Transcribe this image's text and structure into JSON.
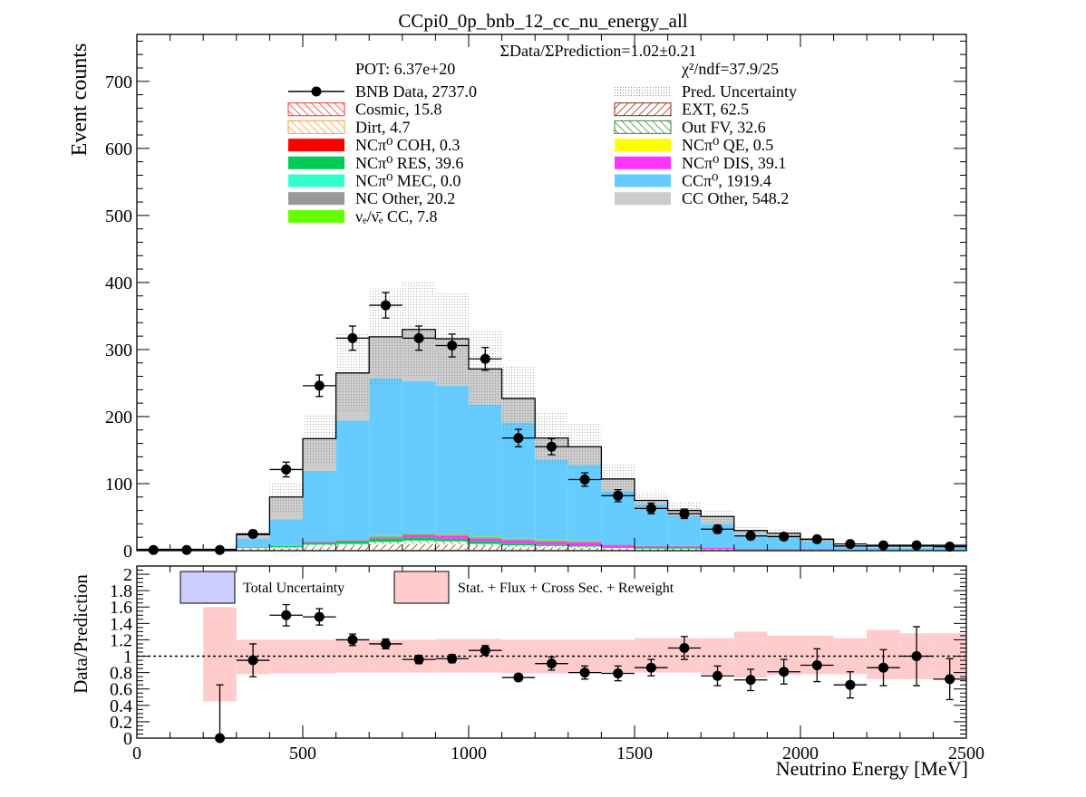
{
  "chart_data": {
    "type": "bar",
    "title": "CCpi0_0p_bnb_12_cc_nu_energy_all",
    "ylabel": "Event counts",
    "xlabel": "Neutrino Energy [MeV]",
    "ratio_ylabel": "Data/Prediction",
    "stat_line": "ΣData/ΣPrediction=1.02±0.21",
    "pot_line": "POT: 6.37e+20",
    "chi2_line": "χ²/ndf=37.9/25",
    "x_edges": [
      0,
      100,
      200,
      300,
      400,
      500,
      600,
      700,
      800,
      900,
      1000,
      1100,
      1200,
      1300,
      1400,
      1500,
      1600,
      1700,
      1800,
      1900,
      2000,
      2100,
      2200,
      2300,
      2400,
      2500
    ],
    "xlim": [
      0,
      2500
    ],
    "ylim": [
      0,
      770
    ],
    "ratio_ylim": [
      0,
      2.1
    ],
    "x_ticks": [
      0,
      500,
      1000,
      1500,
      2000,
      2500
    ],
    "y_ticks": [
      0,
      100,
      200,
      300,
      400,
      500,
      600,
      700
    ],
    "ratio_ticks": [
      0,
      0.2,
      0.4,
      0.6,
      0.8,
      1,
      1.2,
      1.4,
      1.6,
      1.8,
      2
    ],
    "legend": [
      {
        "label": "BNB Data, 2737.0",
        "style": "marker",
        "color": "#000000"
      },
      {
        "label": "Pred. Uncertainty",
        "style": "dots",
        "color": "#bbbbbb"
      },
      {
        "label": "Cosmic, 15.8",
        "style": "hatch",
        "color": "#ff3333"
      },
      {
        "label": "EXT, 62.5",
        "style": "hatch",
        "color": "#8b2a12"
      },
      {
        "label": "Dirt, 4.7",
        "style": "hatch",
        "color": "#ff9933"
      },
      {
        "label": "Out FV, 32.6",
        "style": "hatch",
        "color": "#338833"
      },
      {
        "label": "NCπ⁰ COH,  0.3",
        "style": "fill",
        "color": "#ff0000"
      },
      {
        "label": "NCπ⁰ QE,  0.5",
        "style": "fill",
        "color": "#ffff00"
      },
      {
        "label": "NCπ⁰ RES,  39.6",
        "style": "fill",
        "color": "#00cc55"
      },
      {
        "label": "NCπ⁰ DIS,  39.1",
        "style": "fill",
        "color": "#ff33ff"
      },
      {
        "label": "NCπ⁰ MEC,  0.0",
        "style": "fill",
        "color": "#33ffcc"
      },
      {
        "label": "CCπ⁰, 1919.4",
        "style": "fill",
        "color": "#66ccff"
      },
      {
        "label": "NC Other, 20.2",
        "style": "fill",
        "color": "#999999"
      },
      {
        "label": "CC Other, 548.2",
        "style": "fill",
        "color": "#cccccc"
      },
      {
        "label": "νₑ/ν̄ₑ CC, 7.8",
        "style": "fill",
        "color": "#66ff00"
      }
    ],
    "ratio_legend": [
      {
        "label": "Total Uncertainty",
        "color": "#ccccff"
      },
      {
        "label": "Stat. + Flux + Cross Sec. + Reweight",
        "color": "#ffcccc"
      }
    ],
    "stack_series": [
      {
        "name": "Cosmic",
        "color": "#ff3333",
        "values": [
          0,
          0,
          0,
          1,
          1,
          2,
          2,
          3,
          3,
          3,
          2,
          1,
          1,
          1,
          0,
          0,
          0,
          0,
          0,
          0,
          0,
          0,
          0,
          0,
          0
        ]
      },
      {
        "name": "EXT",
        "color": "#8b2a12",
        "values": [
          1,
          1,
          1,
          2,
          3,
          4,
          5,
          6,
          7,
          6,
          5,
          4,
          4,
          3,
          3,
          2,
          2,
          1,
          1,
          1,
          1,
          0,
          0,
          0,
          0
        ]
      },
      {
        "name": "Dirt",
        "color": "#ff9933",
        "values": [
          0,
          0,
          0,
          0,
          0,
          1,
          1,
          1,
          1,
          1,
          0,
          0,
          0,
          0,
          0,
          0,
          0,
          0,
          0,
          0,
          0,
          0,
          0,
          0,
          0
        ]
      },
      {
        "name": "Out FV",
        "color": "#338833",
        "values": [
          0,
          0,
          0,
          1,
          1,
          2,
          2,
          3,
          4,
          4,
          3,
          3,
          2,
          2,
          1,
          1,
          1,
          1,
          0,
          0,
          0,
          0,
          0,
          0,
          0
        ]
      },
      {
        "name": "NCpi0 RES",
        "color": "#00cc55",
        "values": [
          0,
          0,
          0,
          1,
          2,
          3,
          4,
          5,
          5,
          4,
          4,
          3,
          2,
          2,
          1,
          1,
          1,
          0,
          0,
          0,
          0,
          0,
          0,
          0,
          0
        ]
      },
      {
        "name": "NCpi0 DIS",
        "color": "#ff33ff",
        "values": [
          0,
          0,
          0,
          0,
          0,
          1,
          1,
          2,
          3,
          4,
          4,
          4,
          4,
          4,
          3,
          2,
          2,
          2,
          1,
          1,
          1,
          0,
          0,
          0,
          0
        ]
      },
      {
        "name": "NC Other",
        "color": "#999999",
        "values": [
          0,
          0,
          0,
          0,
          0,
          1,
          1,
          1,
          2,
          2,
          2,
          2,
          2,
          2,
          1,
          1,
          1,
          1,
          0,
          0,
          0,
          0,
          0,
          0,
          0
        ]
      },
      {
        "name": "nue CC",
        "color": "#66ff00",
        "values": [
          0,
          0,
          0,
          0,
          0,
          0,
          0,
          1,
          1,
          1,
          1,
          1,
          1,
          1,
          0,
          0,
          0,
          0,
          0,
          0,
          0,
          0,
          0,
          0,
          0
        ]
      },
      {
        "name": "CCpi0",
        "color": "#66ccff",
        "values": [
          0,
          0,
          0,
          13,
          40,
          105,
          178,
          235,
          227,
          221,
          197,
          173,
          120,
          113,
          80,
          62,
          45,
          35,
          22,
          19,
          12,
          6,
          5,
          4,
          5
        ]
      },
      {
        "name": "CC Other",
        "color": "#cccccc",
        "values": [
          1,
          1,
          1,
          6,
          33,
          48,
          71,
          62,
          77,
          70,
          53,
          36,
          32,
          27,
          18,
          6,
          8,
          11,
          6,
          5,
          3,
          1,
          2,
          3,
          3
        ]
      }
    ],
    "stack_total": [
      2,
      2,
      2,
      24,
      80,
      167,
      265,
      319,
      330,
      316,
      271,
      227,
      168,
      155,
      107,
      75,
      60,
      51,
      30,
      26,
      17,
      7,
      7,
      7,
      8
    ],
    "pred_uncertainty": [
      1,
      1,
      1,
      6,
      22,
      36,
      58,
      72,
      70,
      70,
      56,
      50,
      38,
      34,
      22,
      12,
      12,
      10,
      6,
      5,
      3,
      2,
      2,
      2,
      2
    ],
    "data": {
      "values": [
        1,
        1,
        1,
        25,
        121,
        246,
        317,
        366,
        317,
        306,
        286,
        168,
        155,
        106,
        82,
        63,
        55,
        32,
        22,
        21,
        17,
        10,
        8,
        8,
        6
      ],
      "errors": [
        1,
        1,
        1,
        5,
        11,
        16,
        18,
        19,
        18,
        17,
        17,
        13,
        12,
        10,
        9,
        8,
        7,
        6,
        5,
        5,
        4,
        3,
        3,
        3,
        2
      ]
    },
    "ratio": {
      "values": [
        null,
        null,
        0,
        0.95,
        1.5,
        1.48,
        1.2,
        1.15,
        0.96,
        0.97,
        1.07,
        0.74,
        0.91,
        0.8,
        0.79,
        0.86,
        1.1,
        0.76,
        0.71,
        0.81,
        0.89,
        0.65,
        0.86,
        1.0,
        0.72
      ],
      "errors": [
        null,
        null,
        0.65,
        0.2,
        0.13,
        0.1,
        0.07,
        0.06,
        0.05,
        0.05,
        0.06,
        0.04,
        0.08,
        0.08,
        0.09,
        0.1,
        0.14,
        0.12,
        0.13,
        0.15,
        0.2,
        0.16,
        0.22,
        0.36,
        0.25
      ],
      "band_low": [
        null,
        null,
        0.45,
        0.78,
        0.79,
        0.79,
        0.8,
        0.8,
        0.8,
        0.8,
        0.8,
        0.79,
        0.79,
        0.8,
        0.8,
        0.8,
        0.8,
        0.78,
        0.74,
        0.77,
        0.78,
        0.78,
        0.72,
        0.72,
        0.72
      ],
      "band_high": [
        null,
        null,
        1.6,
        1.2,
        1.2,
        1.2,
        1.2,
        1.2,
        1.2,
        1.21,
        1.21,
        1.2,
        1.2,
        1.2,
        1.2,
        1.22,
        1.22,
        1.22,
        1.3,
        1.25,
        1.25,
        1.22,
        1.32,
        1.28,
        1.28
      ]
    }
  }
}
